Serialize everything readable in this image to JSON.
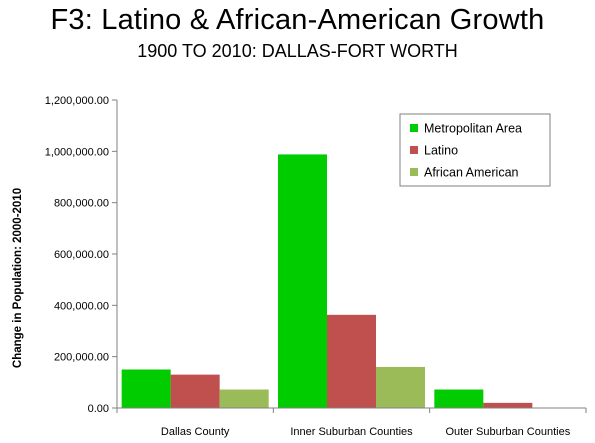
{
  "header": {
    "title": "F3: Latino & African-American Growth",
    "subtitle": "1900 TO 2010: DALLAS-FORT WORTH"
  },
  "chart_data": {
    "type": "bar",
    "title": "F3: Latino & African-American Growth",
    "subtitle": "1900 TO 2010: DALLAS-FORT WORTH",
    "ylabel": "Change in Population: 2000-2010",
    "xlabel": "",
    "ylim": [
      0,
      1200000
    ],
    "yticks": [
      0,
      200000,
      400000,
      600000,
      800000,
      1000000,
      1200000
    ],
    "ytick_labels": [
      "0.00",
      "200,000.00",
      "400,000.00",
      "600,000.00",
      "800,000.00",
      "1,000,000.00",
      "1,200,000.00"
    ],
    "categories": [
      "Dallas County",
      "Inner Suburban Counties",
      "Outer Suburban Counties"
    ],
    "series": [
      {
        "name": "Metropolitan Area",
        "color": "#00cc00",
        "values": [
          150000,
          988000,
          72000
        ]
      },
      {
        "name": "Latino",
        "color": "#c0504d",
        "values": [
          130000,
          363000,
          20000
        ]
      },
      {
        "name": "African American",
        "color": "#9bbb59",
        "values": [
          72000,
          160000,
          0
        ]
      }
    ],
    "legend_position": "top-right",
    "grid": false
  }
}
